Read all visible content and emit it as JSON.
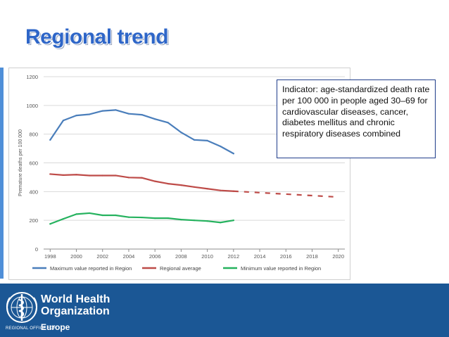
{
  "slide": {
    "title": "Regional trend",
    "note": "Indicator: age-standardized death rate per 100 000 in people aged 30–69 for cardiovascular diseases, cancer, diabetes mellitus and chronic respiratory diseases combined"
  },
  "footer": {
    "org_line1": "World Health",
    "org_line2": "Organization",
    "office": "REGIONAL OFFICE FOR",
    "region": "Europe",
    "colors": {
      "background": "#1b5795",
      "text": "#ffffff"
    }
  },
  "chart_data": {
    "type": "line",
    "ylabel": "Premature deaths per 100 000",
    "xlabel": "",
    "ylim": [
      0,
      1200
    ],
    "xlim": [
      1997.5,
      2020.5
    ],
    "y_ticks": [
      0,
      200,
      400,
      600,
      800,
      1000,
      1200
    ],
    "x_ticks": [
      1998,
      2000,
      2002,
      2004,
      2006,
      2008,
      2010,
      2012,
      2014,
      2016,
      2018,
      2020
    ],
    "y_tick_labels": [
      "0",
      "200",
      "400",
      "600",
      "800",
      "1000",
      "1200"
    ],
    "x_tick_labels": [
      "1998",
      "2000",
      "2002",
      "2004",
      "2006",
      "2008",
      "2010",
      "2012",
      "2014",
      "2016",
      "2018",
      "2020"
    ],
    "grid": true,
    "legend_position": "bottom",
    "series": [
      {
        "name": "Maximum value reported in Region",
        "color": "#4a7ebb",
        "x": [
          1998,
          1999,
          2000,
          2001,
          2002,
          2003,
          2004,
          2005,
          2006,
          2007,
          2008,
          2009,
          2010,
          2011,
          2012
        ],
        "values": [
          760,
          895,
          930,
          938,
          962,
          968,
          942,
          935,
          905,
          880,
          812,
          760,
          755,
          715,
          665
        ]
      },
      {
        "name": "Regional average",
        "color": "#be4b48",
        "x": [
          1998,
          1999,
          2000,
          2001,
          2002,
          2003,
          2004,
          2005,
          2006,
          2007,
          2008,
          2009,
          2010,
          2011,
          2012
        ],
        "values": [
          522,
          515,
          518,
          512,
          512,
          512,
          498,
          496,
          472,
          455,
          445,
          432,
          420,
          408,
          403
        ]
      },
      {
        "name": "Minimum value reported in Region",
        "color": "#25b25e",
        "x": [
          1998,
          1999,
          2000,
          2001,
          2002,
          2003,
          2004,
          2005,
          2006,
          2007,
          2008,
          2009,
          2010,
          2011,
          2012
        ],
        "values": [
          175,
          210,
          243,
          250,
          235,
          235,
          222,
          220,
          215,
          215,
          205,
          200,
          195,
          185,
          200
        ]
      }
    ],
    "projection": {
      "series": "Regional average",
      "style": "dashed",
      "color": "#be4b48",
      "x": [
        2012,
        2020
      ],
      "values": [
        403,
        362
      ]
    }
  }
}
